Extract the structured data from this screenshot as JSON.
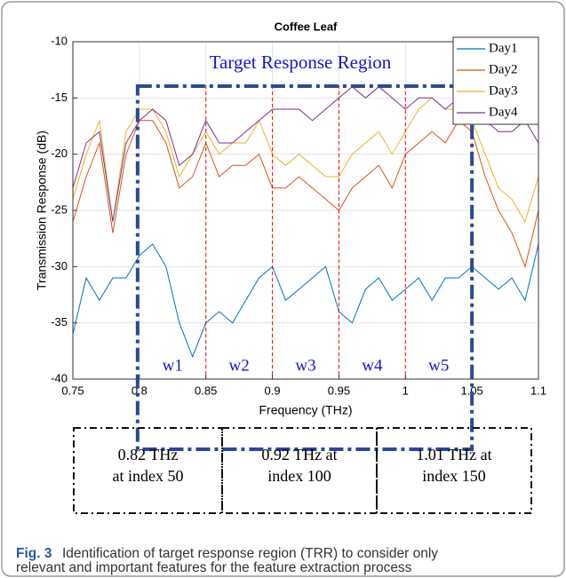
{
  "chart_data": {
    "type": "line",
    "title": "Coffee Leaf",
    "xlabel": "Frequency (THz)",
    "ylabel": "Transmission Response (dB)",
    "x": [
      0.75,
      0.76,
      0.77,
      0.78,
      0.79,
      0.8,
      0.81,
      0.82,
      0.83,
      0.84,
      0.85,
      0.86,
      0.87,
      0.88,
      0.89,
      0.9,
      0.91,
      0.92,
      0.93,
      0.94,
      0.95,
      0.96,
      0.97,
      0.98,
      0.99,
      1,
      1.01,
      1.02,
      1.03,
      1.04,
      1.05,
      1.06,
      1.07,
      1.08,
      1.09,
      1.1
    ],
    "series": [
      {
        "name": "Day1",
        "color": "#0072bd",
        "values": [
          -36,
          -31,
          -33,
          -31,
          -31,
          -29,
          -28,
          -30,
          -35,
          -38,
          -35,
          -34,
          -35,
          -33,
          -31,
          -30,
          -33,
          -32,
          -31,
          -30,
          -34,
          -35,
          -32,
          -31,
          -33,
          -32,
          -31,
          -33,
          -31,
          -31,
          -30,
          -31,
          -32,
          -31,
          -33,
          -28
        ]
      },
      {
        "name": "Day2",
        "color": "#d95319",
        "values": [
          -26,
          -22,
          -19,
          -27,
          -20,
          -17,
          -17,
          -19,
          -23,
          -22,
          -19,
          -22,
          -21,
          -21,
          -20,
          -23,
          -23,
          -22,
          -23,
          -24,
          -25,
          -23,
          -22,
          -21,
          -23,
          -20,
          -19,
          -18,
          -19,
          -17,
          -18,
          -22,
          -25,
          -27,
          -30,
          -25
        ]
      },
      {
        "name": "Day3",
        "color": "#edb120",
        "values": [
          -24,
          -20,
          -17,
          -26,
          -18,
          -16,
          -16,
          -18,
          -22,
          -20,
          -18,
          -20,
          -19,
          -19,
          -17,
          -20,
          -21,
          -20,
          -21,
          -22,
          -22,
          -20,
          -19,
          -18,
          -20,
          -18,
          -16,
          -15,
          -16,
          -16,
          -17,
          -20,
          -23,
          -24,
          -26,
          -22
        ]
      },
      {
        "name": "Day4",
        "color": "#7e2f8e",
        "values": [
          -23,
          -19,
          -18,
          -26,
          -19,
          -17,
          -16,
          -17,
          -21,
          -20,
          -17,
          -19,
          -19,
          -18,
          -17,
          -16,
          -16,
          -16,
          -17,
          -16,
          -15,
          -14,
          -15,
          -14,
          -15,
          -16,
          -15,
          -15,
          -16,
          -15,
          -15,
          -17,
          -18,
          -18,
          -17,
          -19
        ]
      }
    ],
    "xlim": [
      0.75,
      1.1
    ],
    "xticks": [
      0.75,
      0.8,
      0.85,
      0.9,
      0.95,
      1,
      1.05,
      1.1
    ],
    "ylim": [
      -40,
      -10
    ],
    "yticks": [
      -40,
      -35,
      -30,
      -25,
      -20,
      -15,
      -10
    ],
    "grid": true,
    "legend": "top-right",
    "region_label": "Target Response Region",
    "window_bounds": [
      0.8,
      0.85,
      0.9,
      0.95,
      1,
      1.05
    ],
    "windows": [
      "w1",
      "w2",
      "w3",
      "w4",
      "w5"
    ],
    "index_boxes": [
      [
        "0.82 THz",
        "at index 50"
      ],
      [
        "0.92 THz at",
        "index 100"
      ],
      [
        "1.01 THz at",
        "index 150"
      ]
    ]
  },
  "caption": {
    "label": "Fig. 3",
    "lines": [
      "Identification of target response region (TRR) to consider only",
      "relevant and important features for the feature extraction process"
    ]
  }
}
